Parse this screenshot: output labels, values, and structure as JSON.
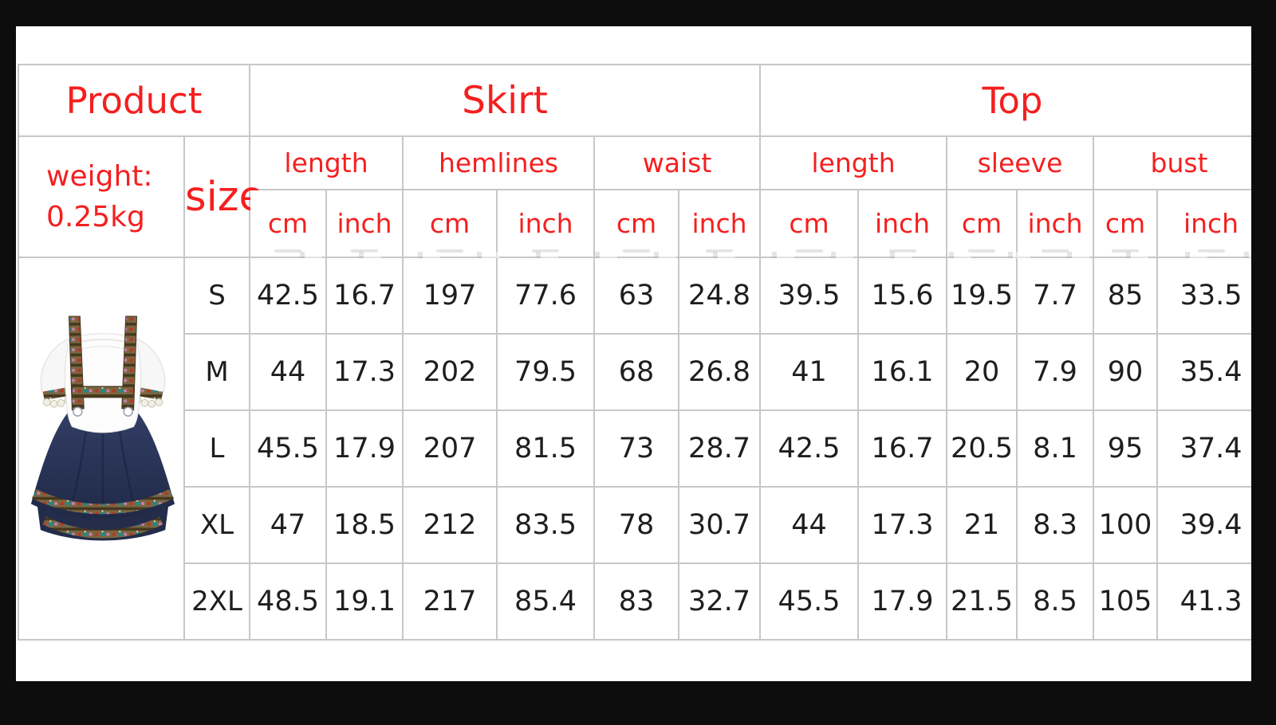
{
  "colors": {
    "accent_red": "#f51f1f",
    "value_text": "#1e1e1e",
    "grid_line": "#c7c7c7",
    "frame_black": "#0d0d0d",
    "sheet_white": "#ffffff",
    "dress_navy": "#26304f",
    "dress_trim_olive": "#7b6742"
  },
  "header": {
    "product": "Product",
    "skirt": "Skirt",
    "top": "Top",
    "weight_line1": "weight:",
    "weight_line2": "0.25kg",
    "size": "size",
    "skirt_measures": [
      "length",
      "hemlines",
      "waist"
    ],
    "top_measures": [
      "length",
      "sleeve",
      "bust"
    ],
    "units": {
      "cm": "cm",
      "inch": "inch"
    }
  },
  "product_image": {
    "icon": "dirndl-dress-illustration",
    "description": "white off-shoulder top with navy suspender skirt and embroidered trim"
  },
  "rows": [
    {
      "size": "S",
      "values": [
        "42.5",
        "16.7",
        "197",
        "77.6",
        "63",
        "24.8",
        "39.5",
        "15.6",
        "19.5",
        "7.7",
        "85",
        "33.5"
      ]
    },
    {
      "size": "M",
      "values": [
        "44",
        "17.3",
        "202",
        "79.5",
        "68",
        "26.8",
        "41",
        "16.1",
        "20",
        "7.9",
        "90",
        "35.4"
      ]
    },
    {
      "size": "L",
      "values": [
        "45.5",
        "17.9",
        "207",
        "81.5",
        "73",
        "28.7",
        "42.5",
        "16.7",
        "20.5",
        "8.1",
        "95",
        "37.4"
      ]
    },
    {
      "size": "XL",
      "values": [
        "47",
        "18.5",
        "212",
        "83.5",
        "78",
        "30.7",
        "44",
        "17.3",
        "21",
        "8.3",
        "100",
        "39.4"
      ]
    },
    {
      "size": "2XL",
      "values": [
        "48.5",
        "19.1",
        "217",
        "85.4",
        "83",
        "32.7",
        "45.5",
        "17.9",
        "21.5",
        "8.5",
        "105",
        "41.3"
      ]
    }
  ],
  "chart_data": {
    "type": "table",
    "title": "Product size chart, weight: 0.25kg",
    "column_groups": [
      {
        "label": "Skirt",
        "measures": [
          "length",
          "hemlines",
          "waist"
        ],
        "units": [
          "cm",
          "inch"
        ]
      },
      {
        "label": "Top",
        "measures": [
          "length",
          "sleeve",
          "bust"
        ],
        "units": [
          "cm",
          "inch"
        ]
      }
    ],
    "columns": [
      "size",
      "skirt length cm",
      "skirt length inch",
      "skirt hemlines cm",
      "skirt hemlines inch",
      "skirt waist cm",
      "skirt waist inch",
      "top length cm",
      "top length inch",
      "top sleeve cm",
      "top sleeve inch",
      "top bust cm",
      "top bust inch"
    ],
    "rows": [
      [
        "S",
        42.5,
        16.7,
        197,
        77.6,
        63,
        24.8,
        39.5,
        15.6,
        19.5,
        7.7,
        85,
        33.5
      ],
      [
        "M",
        44,
        17.3,
        202,
        79.5,
        68,
        26.8,
        41,
        16.1,
        20,
        7.9,
        90,
        35.4
      ],
      [
        "L",
        45.5,
        17.9,
        207,
        81.5,
        73,
        28.7,
        42.5,
        16.7,
        20.5,
        8.1,
        95,
        37.4
      ],
      [
        "XL",
        47,
        18.5,
        212,
        83.5,
        78,
        30.7,
        44,
        17.3,
        21,
        8.3,
        100,
        39.4
      ],
      [
        "2XL",
        48.5,
        19.1,
        217,
        85.4,
        83,
        32.7,
        45.5,
        17.9,
        21.5,
        8.5,
        105,
        41.3
      ]
    ]
  }
}
